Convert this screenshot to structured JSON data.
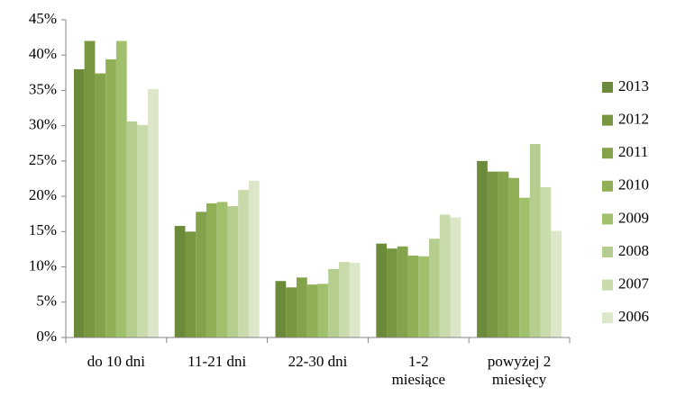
{
  "chart_data": {
    "type": "bar",
    "categories": [
      "do 10 dni",
      "11-21 dni",
      "22-30 dni",
      "1-2 miesiące",
      "powyżej 2 miesięcy"
    ],
    "series": [
      {
        "name": "2013",
        "color": "#6b8a3a",
        "values": [
          38.0,
          15.8,
          8.0,
          13.3,
          25.0
        ]
      },
      {
        "name": "2012",
        "color": "#77963f",
        "values": [
          42.0,
          15.0,
          7.1,
          12.6,
          23.5
        ]
      },
      {
        "name": "2011",
        "color": "#84a249",
        "values": [
          37.4,
          17.8,
          8.5,
          12.9,
          23.5
        ]
      },
      {
        "name": "2010",
        "color": "#91b055",
        "values": [
          39.4,
          19.0,
          7.5,
          11.6,
          22.6
        ]
      },
      {
        "name": "2009",
        "color": "#a1c06b",
        "values": [
          42.0,
          19.2,
          7.6,
          11.5,
          19.8
        ]
      },
      {
        "name": "2008",
        "color": "#b5cd8f",
        "values": [
          30.6,
          18.6,
          9.7,
          14.0,
          27.4
        ]
      },
      {
        "name": "2007",
        "color": "#c9daab",
        "values": [
          30.1,
          20.9,
          10.7,
          17.4,
          21.3
        ]
      },
      {
        "name": "2006",
        "color": "#dce6c9",
        "values": [
          35.2,
          22.2,
          10.6,
          17.0,
          15.1
        ]
      }
    ],
    "ylim": [
      0,
      45
    ],
    "yticks": [
      {
        "value": 0,
        "label": "0%"
      },
      {
        "value": 5,
        "label": "5%"
      },
      {
        "value": 10,
        "label": "10%"
      },
      {
        "value": 15,
        "label": "15%"
      },
      {
        "value": 20,
        "label": "20%"
      },
      {
        "value": 25,
        "label": "25%"
      },
      {
        "value": 30,
        "label": "30%"
      },
      {
        "value": 35,
        "label": "35%"
      },
      {
        "value": 40,
        "label": "40%"
      },
      {
        "value": 45,
        "label": "45%"
      }
    ],
    "legend": "right"
  }
}
